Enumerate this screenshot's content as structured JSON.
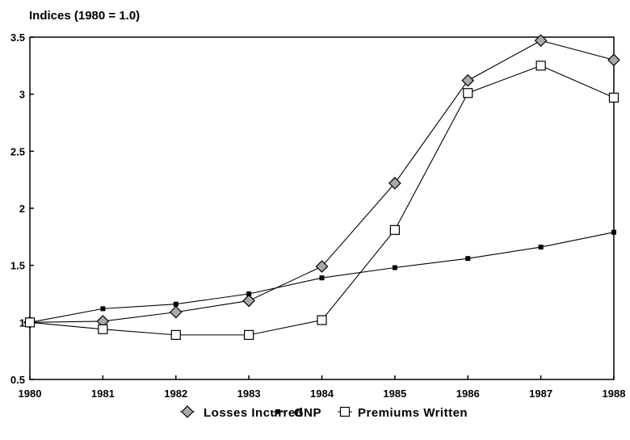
{
  "chart_data": {
    "type": "line",
    "ylabel": "Indices (1980 = 1.0)",
    "x": [
      "1980",
      "1981",
      "1982",
      "1983",
      "1984",
      "1985",
      "1986",
      "1987",
      "1988"
    ],
    "ylim": [
      0.5,
      3.5
    ],
    "yticks": [
      "0.5",
      "1",
      "1.5",
      "2",
      "2.5",
      "3",
      "3.5"
    ],
    "grid": false,
    "legend_position": "bottom",
    "series": [
      {
        "name": "Losses Incurred",
        "marker": "diamond",
        "values": [
          1.0,
          1.01,
          1.09,
          1.19,
          1.49,
          2.22,
          3.12,
          3.47,
          3.3
        ]
      },
      {
        "name": "GNP",
        "marker": "small-square",
        "values": [
          1.0,
          1.12,
          1.16,
          1.25,
          1.39,
          1.48,
          1.56,
          1.66,
          1.79
        ]
      },
      {
        "name": "Premiums Written",
        "marker": "open-square",
        "values": [
          1.0,
          0.94,
          0.89,
          0.89,
          1.02,
          1.81,
          3.01,
          3.25,
          2.97
        ]
      }
    ]
  }
}
